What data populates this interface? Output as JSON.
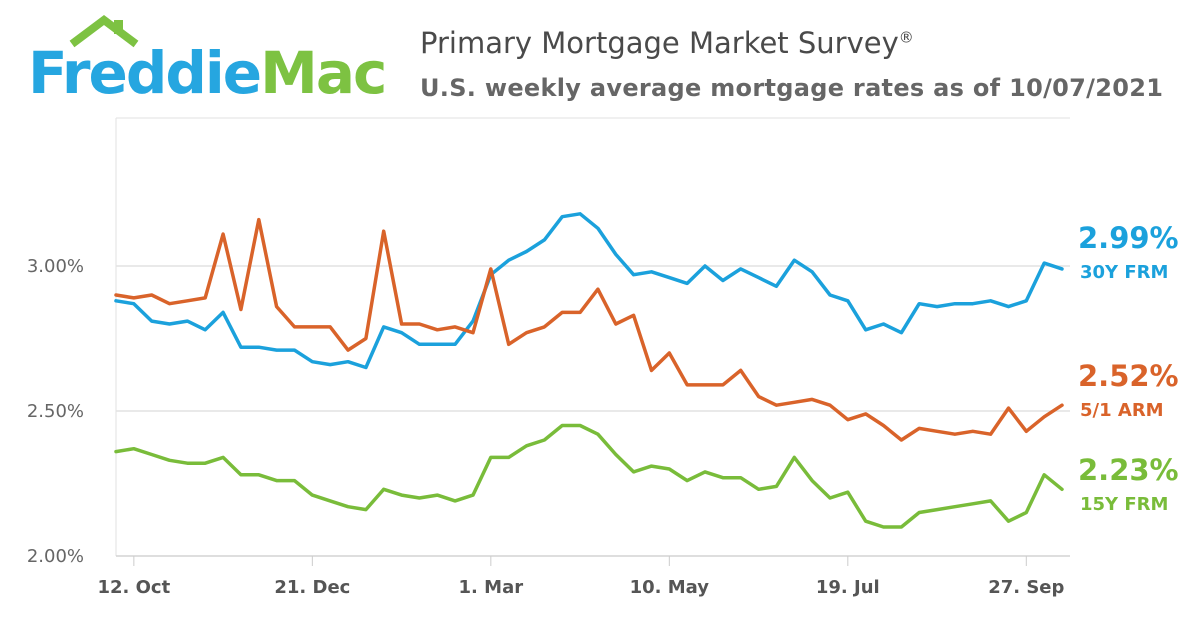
{
  "logo": {
    "word1": "Freddie",
    "word2": "Mac",
    "blue": "#26a6e0",
    "green": "#7dc242"
  },
  "header": {
    "title": "Primary Mortgage Market Survey",
    "title_mark": "®",
    "subtitle": "U.S. weekly average mortgage rates as of 10/07/2021"
  },
  "chart_data": {
    "type": "line",
    "title": "Primary Mortgage Market Survey",
    "subtitle": "U.S. weekly average mortgage rates as of 10/07/2021",
    "xlabel": "",
    "ylabel": "",
    "ylim": [
      2.0,
      3.5
    ],
    "yticks": [
      2.0,
      2.5,
      3.0
    ],
    "ytick_labels": [
      "2.00%",
      "2.50%",
      "3.00%"
    ],
    "xtick_labels": [
      "12. Oct",
      "21. Dec",
      "1. Mar",
      "10. May",
      "19. Jul",
      "27. Sep"
    ],
    "xtick_index": [
      1,
      11,
      21,
      31,
      41,
      51
    ],
    "grid": true,
    "series": [
      {
        "name": "30Y FRM",
        "color": "#1ba1dc",
        "last_label": "2.99%",
        "values": [
          2.88,
          2.87,
          2.81,
          2.8,
          2.81,
          2.78,
          2.84,
          2.72,
          2.72,
          2.71,
          2.71,
          2.67,
          2.66,
          2.67,
          2.65,
          2.79,
          2.77,
          2.73,
          2.73,
          2.73,
          2.81,
          2.97,
          3.02,
          3.05,
          3.09,
          3.17,
          3.18,
          3.13,
          3.04,
          2.97,
          2.98,
          2.96,
          2.94,
          3.0,
          2.95,
          2.99,
          2.96,
          2.93,
          3.02,
          2.98,
          2.9,
          2.88,
          2.78,
          2.8,
          2.77,
          2.87,
          2.86,
          2.87,
          2.87,
          2.88,
          2.86,
          2.88,
          3.01,
          2.99
        ]
      },
      {
        "name": "5/1 ARM",
        "color": "#d9632a",
        "last_label": "2.52%",
        "values": [
          2.9,
          2.89,
          2.9,
          2.87,
          2.88,
          2.89,
          3.11,
          2.85,
          3.16,
          2.86,
          2.79,
          2.79,
          2.79,
          2.71,
          2.75,
          3.12,
          2.8,
          2.8,
          2.78,
          2.79,
          2.77,
          2.99,
          2.73,
          2.77,
          2.79,
          2.84,
          2.84,
          2.92,
          2.8,
          2.83,
          2.64,
          2.7,
          2.59,
          2.59,
          2.59,
          2.64,
          2.55,
          2.52,
          2.53,
          2.54,
          2.52,
          2.47,
          2.49,
          2.45,
          2.4,
          2.44,
          2.43,
          2.42,
          2.43,
          2.42,
          2.51,
          2.43,
          2.48,
          2.52
        ]
      },
      {
        "name": "15Y FRM",
        "color": "#79bc3a",
        "last_label": "2.23%",
        "values": [
          2.36,
          2.37,
          2.35,
          2.33,
          2.32,
          2.32,
          2.34,
          2.28,
          2.28,
          2.26,
          2.26,
          2.21,
          2.19,
          2.17,
          2.16,
          2.23,
          2.21,
          2.2,
          2.21,
          2.19,
          2.21,
          2.34,
          2.34,
          2.38,
          2.4,
          2.45,
          2.45,
          2.42,
          2.35,
          2.29,
          2.31,
          2.3,
          2.26,
          2.29,
          2.27,
          2.27,
          2.23,
          2.24,
          2.34,
          2.26,
          2.2,
          2.22,
          2.12,
          2.1,
          2.1,
          2.15,
          2.16,
          2.17,
          2.18,
          2.19,
          2.12,
          2.15,
          2.28,
          2.23
        ]
      }
    ]
  }
}
